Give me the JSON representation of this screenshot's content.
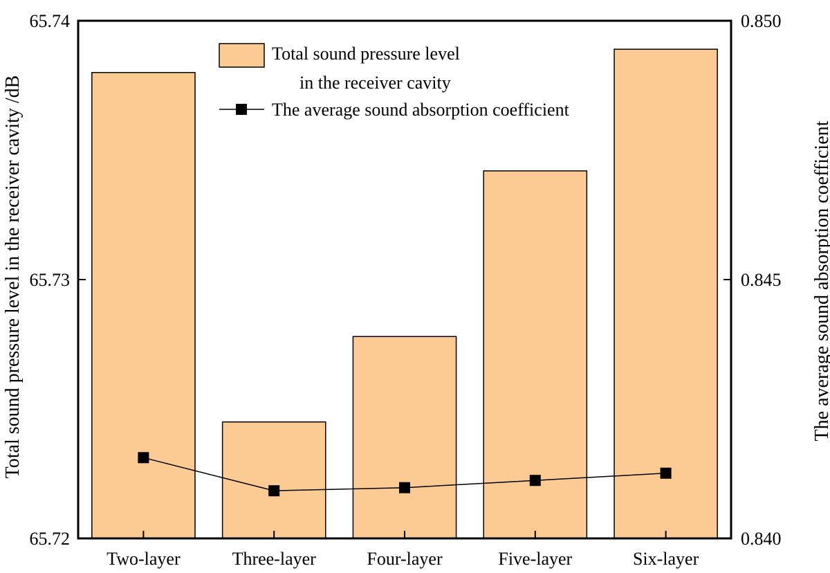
{
  "chart_data": {
    "type": "bar+line",
    "categories": [
      "Two-layer",
      "Three-layer",
      "Four-layer",
      "Five-layer",
      "Six-layer"
    ],
    "series": [
      {
        "name": "Total sound pressure level in the receiver cavity",
        "legend_lines": [
          "Total sound pressure level",
          "in the receiver cavity"
        ],
        "type": "bar",
        "axis": "left",
        "color": "#FCCB94",
        "values": [
          65.738,
          65.7245,
          65.7278,
          65.7342,
          65.7389
        ]
      },
      {
        "name": "The average sound absorption coefficient",
        "legend_lines": [
          "The average sound absorption coefficient"
        ],
        "type": "line",
        "axis": "right",
        "color": "#000000",
        "marker": "square",
        "values": [
          0.84156,
          0.84092,
          0.84098,
          0.84112,
          0.84126
        ]
      }
    ],
    "ylabel": "Total sound pressure level in the receiver cavity /dB",
    "ylim": [
      65.72,
      65.74
    ],
    "yticks": [
      "65.72",
      "65.73",
      "65.74"
    ],
    "y2label": "The average sound absorption coefficient",
    "y2lim": [
      0.84,
      0.85
    ],
    "y2ticks": [
      "0.840",
      "0.845",
      "0.850"
    ],
    "grid": false,
    "legend_position": "top-center"
  }
}
